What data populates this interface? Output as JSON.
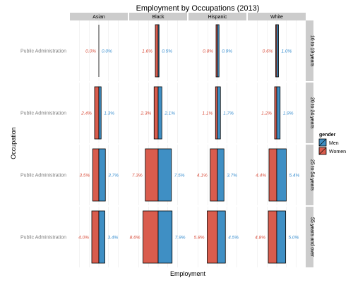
{
  "chart_data": {
    "type": "bar",
    "title": "Employment by Occupations (2013)",
    "xlabel": "Employment",
    "ylabel": "Occupation",
    "category": "Public Administration",
    "facet_columns": [
      "Asian",
      "Black",
      "Hispanic",
      "White"
    ],
    "facet_rows": [
      "16 to 19 years",
      "20 to 24 years",
      "25 to 54 years",
      "55 years and over"
    ],
    "legend": {
      "title": "gender",
      "position": "right",
      "entries": [
        {
          "name": "Men",
          "color": "#3f8fc4"
        },
        {
          "name": "Women",
          "color": "#d95c4d"
        }
      ]
    },
    "series": [
      {
        "name": "Women",
        "color": "#d95c4d",
        "label_color": "#d94f3d",
        "values": [
          [
            0.0,
            1.6,
            0.8,
            0.6
          ],
          [
            2.4,
            2.3,
            1.1,
            1.2
          ],
          [
            3.5,
            7.3,
            4.1,
            4.4
          ],
          [
            4.0,
            8.6,
            5.8,
            4.8
          ]
        ],
        "labels": [
          [
            "0.0%",
            "1.6%",
            "0.8%",
            "0.6%"
          ],
          [
            "2.4%",
            "2.3%",
            "1.1%",
            "1.2%"
          ],
          [
            "3.5%",
            "7.3%",
            "4.1%",
            "4.4%"
          ],
          [
            "4.0%",
            "8.6%",
            "5.8%",
            "4.8%"
          ]
        ]
      },
      {
        "name": "Men",
        "color": "#3f8fc4",
        "label_color": "#3a8fd0",
        "values": [
          [
            0.0,
            0.5,
            0.9,
            1.0
          ],
          [
            1.3,
            2.1,
            1.7,
            1.9
          ],
          [
            3.7,
            7.5,
            3.7,
            5.4
          ],
          [
            3.4,
            7.9,
            4.5,
            5.0
          ]
        ],
        "labels": [
          [
            "0.0%",
            "0.5%",
            "0.9%",
            "1.0%"
          ],
          [
            "1.3%",
            "2.1%",
            "1.7%",
            "1.9%"
          ],
          [
            "3.7%",
            "7.5%",
            "3.7%",
            "5.4%"
          ],
          [
            "3.4%",
            "7.9%",
            "4.5%",
            "5.0%"
          ]
        ]
      }
    ],
    "grid": true,
    "strip_fill": "#cccccc",
    "gridline_color": "#ebebeb"
  }
}
